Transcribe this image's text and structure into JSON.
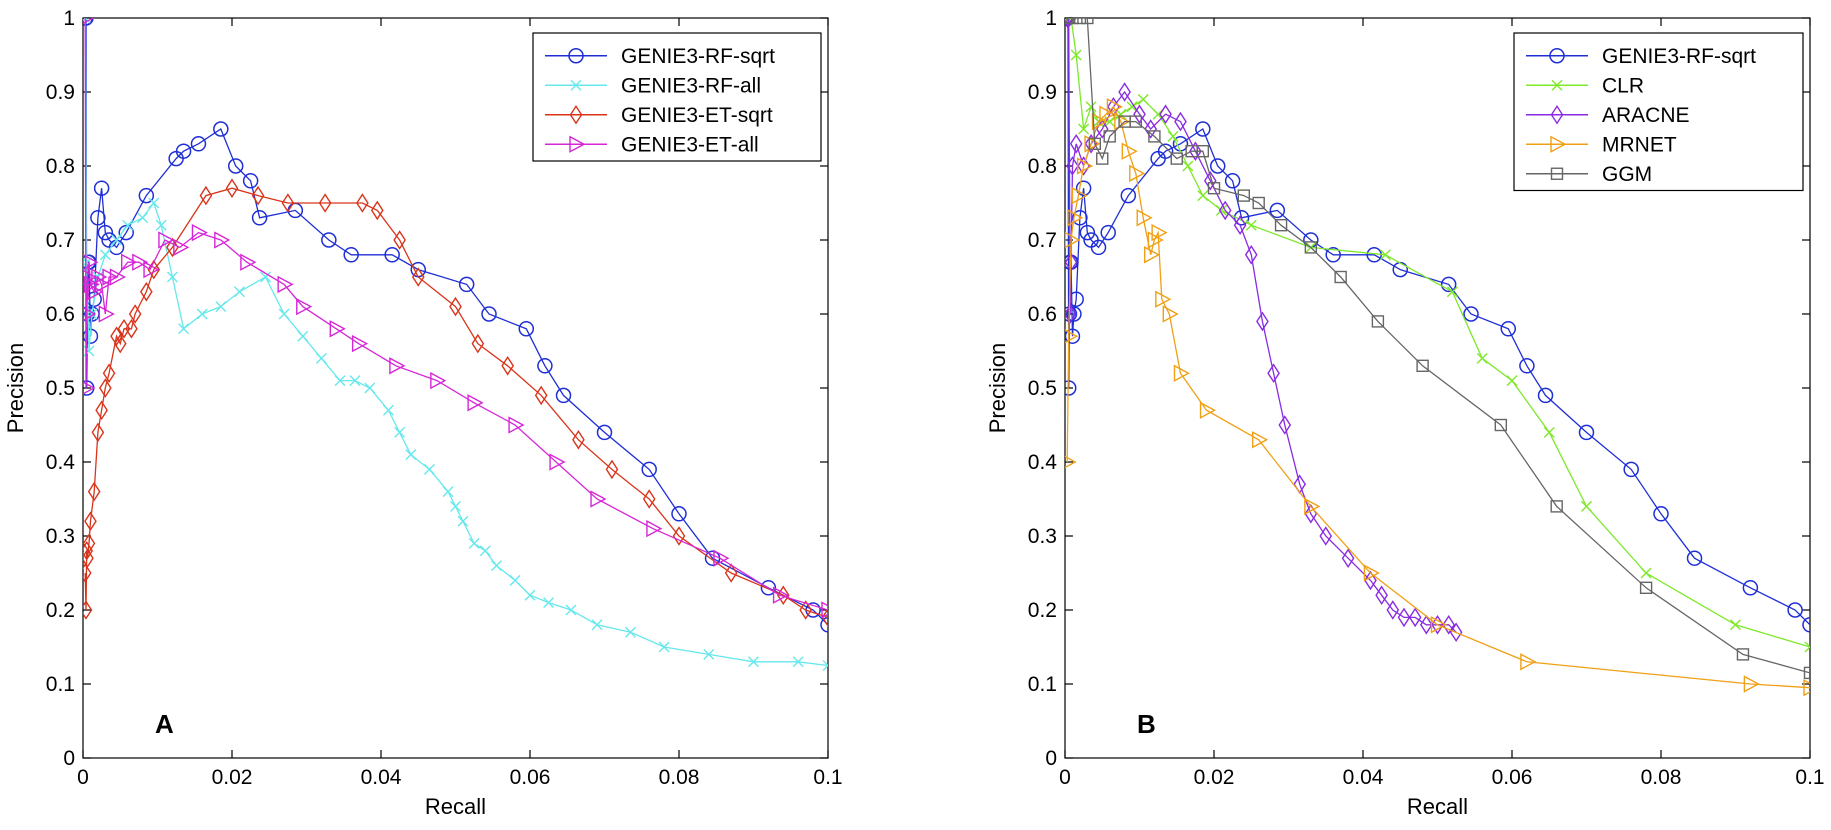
{
  "chart_data": [
    {
      "type": "line",
      "panel_label": "A",
      "xlabel": "Recall",
      "ylabel": "Precision",
      "xlim": [
        0,
        0.1
      ],
      "ylim": [
        0,
        1
      ],
      "xticks": [
        "0",
        "0.02",
        "0.04",
        "0.06",
        "0.08",
        "0.1"
      ],
      "yticks": [
        "0",
        "0.1",
        "0.2",
        "0.3",
        "0.4",
        "0.5",
        "0.6",
        "0.7",
        "0.8",
        "0.9",
        "1"
      ],
      "grid": false,
      "legend_position": "top-right",
      "series": [
        {
          "name": "GENIE3-RF-sqrt",
          "color": "#1f2fd6",
          "marker": "circle",
          "x": [
            0.0003,
            0.0004,
            0.0005,
            0.0006,
            0.0007,
            0.0008,
            0.001,
            0.0012,
            0.0015,
            0.002,
            0.0025,
            0.003,
            0.0035,
            0.0045,
            0.0058,
            0.0085,
            0.0125,
            0.0135,
            0.0155,
            0.0185,
            0.0205,
            0.0225,
            0.0237,
            0.0285,
            0.033,
            0.036,
            0.0415,
            0.045,
            0.0515,
            0.0545,
            0.0595,
            0.062,
            0.0645,
            0.07,
            0.076,
            0.08,
            0.0845,
            0.092,
            0.098,
            0.1
          ],
          "y": [
            1.0,
            1.0,
            0.5,
            0.6,
            0.67,
            0.67,
            0.57,
            0.6,
            0.62,
            0.73,
            0.77,
            0.71,
            0.7,
            0.69,
            0.71,
            0.76,
            0.81,
            0.82,
            0.83,
            0.85,
            0.8,
            0.78,
            0.73,
            0.74,
            0.7,
            0.68,
            0.68,
            0.66,
            0.64,
            0.6,
            0.58,
            0.53,
            0.49,
            0.44,
            0.39,
            0.33,
            0.27,
            0.23,
            0.2,
            0.18
          ]
        },
        {
          "name": "GENIE3-RF-all",
          "color": "#66e8ec",
          "marker": "x",
          "x": [
            0.0003,
            0.0005,
            0.0008,
            0.0012,
            0.002,
            0.003,
            0.0045,
            0.006,
            0.008,
            0.0095,
            0.0105,
            0.012,
            0.0135,
            0.016,
            0.0185,
            0.021,
            0.0245,
            0.027,
            0.0295,
            0.032,
            0.0345,
            0.0365,
            0.0385,
            0.041,
            0.0425,
            0.044,
            0.0465,
            0.049,
            0.05,
            0.051,
            0.0525,
            0.054,
            0.0555,
            0.058,
            0.06,
            0.0625,
            0.0655,
            0.069,
            0.0735,
            0.078,
            0.084,
            0.09,
            0.096,
            0.1
          ],
          "y": [
            1.0,
            0.67,
            0.55,
            0.6,
            0.65,
            0.68,
            0.7,
            0.72,
            0.73,
            0.75,
            0.72,
            0.65,
            0.58,
            0.6,
            0.61,
            0.63,
            0.65,
            0.6,
            0.57,
            0.54,
            0.51,
            0.51,
            0.5,
            0.47,
            0.44,
            0.41,
            0.39,
            0.36,
            0.34,
            0.32,
            0.29,
            0.28,
            0.26,
            0.24,
            0.22,
            0.21,
            0.2,
            0.18,
            0.17,
            0.15,
            0.14,
            0.13,
            0.13,
            0.125
          ]
        },
        {
          "name": "GENIE3-ET-sqrt",
          "color": "#d9341a",
          "marker": "diamond",
          "x": [
            0.0003,
            0.0004,
            0.0005,
            0.0006,
            0.0008,
            0.001,
            0.0015,
            0.002,
            0.0025,
            0.003,
            0.0035,
            0.0045,
            0.005,
            0.0055,
            0.0065,
            0.007,
            0.0085,
            0.0095,
            0.012,
            0.0165,
            0.02,
            0.0235,
            0.0275,
            0.0325,
            0.0375,
            0.0395,
            0.0425,
            0.045,
            0.05,
            0.053,
            0.057,
            0.0615,
            0.0665,
            0.071,
            0.076,
            0.08,
            0.087,
            0.094,
            0.097,
            0.1
          ],
          "y": [
            0.25,
            0.2,
            0.28,
            0.27,
            0.29,
            0.32,
            0.36,
            0.44,
            0.47,
            0.5,
            0.52,
            0.57,
            0.56,
            0.58,
            0.58,
            0.6,
            0.63,
            0.66,
            0.69,
            0.76,
            0.77,
            0.76,
            0.75,
            0.75,
            0.75,
            0.74,
            0.7,
            0.65,
            0.61,
            0.56,
            0.53,
            0.49,
            0.43,
            0.39,
            0.35,
            0.3,
            0.25,
            0.22,
            0.2,
            0.19
          ]
        },
        {
          "name": "GENIE3-ET-all",
          "color": "#d627d6",
          "marker": "triangle-right",
          "x": [
            0.0003,
            0.0004,
            0.0005,
            0.0006,
            0.0008,
            0.001,
            0.0015,
            0.002,
            0.0025,
            0.003,
            0.0035,
            0.0045,
            0.006,
            0.0075,
            0.009,
            0.011,
            0.013,
            0.0155,
            0.0185,
            0.022,
            0.027,
            0.0295,
            0.034,
            0.037,
            0.042,
            0.0475,
            0.0525,
            0.058,
            0.0635,
            0.069,
            0.0765,
            0.0855,
            0.0935,
            0.1
          ],
          "y": [
            1.0,
            0.5,
            0.6,
            0.65,
            0.67,
            0.64,
            0.63,
            0.65,
            0.64,
            0.6,
            0.65,
            0.65,
            0.67,
            0.67,
            0.66,
            0.7,
            0.69,
            0.71,
            0.7,
            0.67,
            0.64,
            0.61,
            0.58,
            0.56,
            0.53,
            0.51,
            0.48,
            0.45,
            0.4,
            0.35,
            0.31,
            0.27,
            0.22,
            0.2
          ]
        }
      ]
    },
    {
      "type": "line",
      "panel_label": "B",
      "xlabel": "Recall",
      "ylabel": "Precision",
      "xlim": [
        0,
        0.1
      ],
      "ylim": [
        0,
        1
      ],
      "xticks": [
        "0",
        "0.02",
        "0.04",
        "0.06",
        "0.08",
        "0.1"
      ],
      "yticks": [
        "0",
        "0.1",
        "0.2",
        "0.3",
        "0.4",
        "0.5",
        "0.6",
        "0.7",
        "0.8",
        "0.9",
        "1"
      ],
      "grid": false,
      "legend_position": "top-right",
      "series": [
        {
          "name": "GENIE3-RF-sqrt",
          "color": "#1f2fd6",
          "marker": "circle",
          "x": [
            0.0003,
            0.0004,
            0.0005,
            0.0006,
            0.0007,
            0.0008,
            0.001,
            0.0012,
            0.0015,
            0.002,
            0.0025,
            0.003,
            0.0035,
            0.0045,
            0.0058,
            0.0085,
            0.0125,
            0.0135,
            0.0155,
            0.0185,
            0.0205,
            0.0225,
            0.0237,
            0.0285,
            0.033,
            0.036,
            0.0415,
            0.045,
            0.0515,
            0.0545,
            0.0595,
            0.062,
            0.0645,
            0.07,
            0.076,
            0.08,
            0.0845,
            0.092,
            0.098,
            0.1
          ],
          "y": [
            1.0,
            1.0,
            0.5,
            0.6,
            0.67,
            0.67,
            0.57,
            0.6,
            0.62,
            0.73,
            0.77,
            0.71,
            0.7,
            0.69,
            0.71,
            0.76,
            0.81,
            0.82,
            0.83,
            0.85,
            0.8,
            0.78,
            0.73,
            0.74,
            0.7,
            0.68,
            0.68,
            0.66,
            0.64,
            0.6,
            0.58,
            0.53,
            0.49,
            0.44,
            0.39,
            0.33,
            0.27,
            0.23,
            0.2,
            0.18
          ]
        },
        {
          "name": "CLR",
          "color": "#7ee82a",
          "marker": "x",
          "x": [
            0.0003,
            0.0008,
            0.0015,
            0.0025,
            0.0035,
            0.0045,
            0.006,
            0.0075,
            0.009,
            0.0105,
            0.0125,
            0.0145,
            0.0165,
            0.0185,
            0.021,
            0.025,
            0.033,
            0.043,
            0.052,
            0.056,
            0.06,
            0.065,
            0.07,
            0.078,
            0.09,
            0.1
          ],
          "y": [
            1.0,
            1.0,
            0.95,
            0.85,
            0.88,
            0.86,
            0.86,
            0.87,
            0.88,
            0.89,
            0.87,
            0.84,
            0.8,
            0.76,
            0.74,
            0.72,
            0.69,
            0.68,
            0.63,
            0.54,
            0.51,
            0.44,
            0.34,
            0.25,
            0.18,
            0.15
          ]
        },
        {
          "name": "ARACNE",
          "color": "#8a2be2",
          "marker": "diamond",
          "x": [
            0.0003,
            0.0005,
            0.0007,
            0.0008,
            0.001,
            0.0015,
            0.0025,
            0.0035,
            0.005,
            0.0065,
            0.008,
            0.01,
            0.0115,
            0.0135,
            0.0155,
            0.0175,
            0.0195,
            0.0215,
            0.0235,
            0.025,
            0.0265,
            0.028,
            0.0295,
            0.0315,
            0.033,
            0.035,
            0.038,
            0.041,
            0.0425,
            0.044,
            0.0455,
            0.047,
            0.0485,
            0.05,
            0.0515,
            0.0525
          ],
          "y": [
            1.0,
            1.0,
            0.6,
            0.67,
            0.8,
            0.83,
            0.8,
            0.83,
            0.85,
            0.88,
            0.9,
            0.87,
            0.85,
            0.87,
            0.86,
            0.82,
            0.78,
            0.74,
            0.72,
            0.68,
            0.59,
            0.52,
            0.45,
            0.37,
            0.33,
            0.3,
            0.27,
            0.24,
            0.22,
            0.2,
            0.19,
            0.19,
            0.18,
            0.18,
            0.18,
            0.17
          ]
        },
        {
          "name": "MRNET",
          "color": "#f0a015",
          "marker": "triangle-right",
          "x": [
            0.0003,
            0.0005,
            0.0008,
            0.0012,
            0.0018,
            0.0025,
            0.0035,
            0.0045,
            0.0055,
            0.0065,
            0.0075,
            0.0085,
            0.0095,
            0.0105,
            0.0115,
            0.012,
            0.0125,
            0.013,
            0.014,
            0.0155,
            0.019,
            0.026,
            0.033,
            0.041,
            0.05,
            0.062,
            0.092,
            0.1
          ],
          "y": [
            0.4,
            0.57,
            0.7,
            0.73,
            0.76,
            0.8,
            0.83,
            0.86,
            0.87,
            0.88,
            0.86,
            0.82,
            0.79,
            0.73,
            0.68,
            0.7,
            0.71,
            0.62,
            0.6,
            0.52,
            0.47,
            0.43,
            0.34,
            0.25,
            0.18,
            0.13,
            0.1,
            0.095
          ]
        },
        {
          "name": "GGM",
          "color": "#666666",
          "marker": "square",
          "x": [
            0.0003,
            0.001,
            0.002,
            0.003,
            0.004,
            0.005,
            0.006,
            0.008,
            0.0095,
            0.012,
            0.015,
            0.017,
            0.0185,
            0.02,
            0.024,
            0.026,
            0.029,
            0.033,
            0.037,
            0.042,
            0.048,
            0.0585,
            0.066,
            0.078,
            0.091,
            0.1
          ],
          "y": [
            1.0,
            1.0,
            1.0,
            1.0,
            0.83,
            0.81,
            0.84,
            0.86,
            0.86,
            0.84,
            0.81,
            0.82,
            0.82,
            0.77,
            0.76,
            0.75,
            0.72,
            0.69,
            0.65,
            0.59,
            0.53,
            0.45,
            0.34,
            0.23,
            0.14,
            0.115
          ]
        }
      ]
    }
  ]
}
